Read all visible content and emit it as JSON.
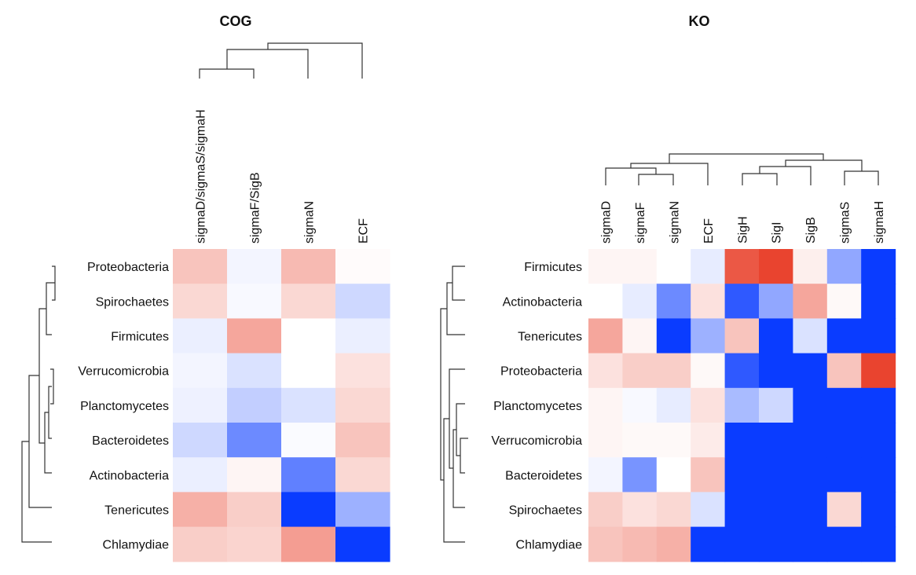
{
  "chart_data": [
    {
      "type": "heatmap",
      "title": "COG",
      "columns": [
        "sigmaD/sigmaS/sigmaH",
        "sigmaF/SigB",
        "sigmaN",
        "ECF"
      ],
      "rows": [
        "Proteobacteria",
        "Spirochaetes",
        "Firmicutes",
        "Verrucomicrobia",
        "Planctomycetes",
        "Bacteroidetes",
        "Actinobacteria",
        "Tenericutes",
        "Chlamydiae"
      ],
      "values": [
        [
          0.3,
          -0.05,
          0.35,
          0.02
        ],
        [
          0.2,
          -0.03,
          0.2,
          -0.2
        ],
        [
          -0.08,
          0.45,
          0.0,
          -0.08
        ],
        [
          -0.05,
          -0.15,
          0.0,
          0.15
        ],
        [
          -0.07,
          -0.25,
          -0.15,
          0.2
        ],
        [
          -0.2,
          -0.6,
          -0.02,
          0.3
        ],
        [
          -0.08,
          0.05,
          -0.65,
          0.2
        ],
        [
          0.4,
          0.25,
          -1.0,
          -0.4
        ],
        [
          0.25,
          0.22,
          0.5,
          -1.0
        ]
      ],
      "color_scale": {
        "low": "#0a3cff",
        "mid": "#ffffff",
        "high": "#e83a24",
        "range": [
          -1,
          1
        ]
      }
    },
    {
      "type": "heatmap",
      "title": "KO",
      "columns": [
        "sigmaD",
        "sigmaF",
        "sigmaN",
        "ECF",
        "SigH",
        "SigI",
        "SigB",
        "sigmaS",
        "sigmaH"
      ],
      "rows": [
        "Firmicutes",
        "Actinobacteria",
        "Tenericutes",
        "Proteobacteria",
        "Planctomycetes",
        "Verrucomicrobia",
        "Bacteroidetes",
        "Spirochaetes",
        "Chlamydiae"
      ],
      "values": [
        [
          0.05,
          0.05,
          0.0,
          -0.1,
          0.85,
          0.95,
          0.08,
          -0.45,
          -1.0
        ],
        [
          0.0,
          -0.1,
          -0.6,
          0.15,
          -0.85,
          -0.45,
          0.45,
          0.03,
          -1.0
        ],
        [
          0.45,
          0.05,
          -1.0,
          -0.4,
          0.3,
          -1.0,
          -0.15,
          -1.0,
          -1.0
        ],
        [
          0.15,
          0.25,
          0.25,
          0.03,
          -0.85,
          -1.0,
          -1.0,
          0.3,
          0.95
        ],
        [
          0.05,
          -0.03,
          -0.1,
          0.15,
          -0.35,
          -0.2,
          -1.0,
          -1.0,
          -1.0
        ],
        [
          0.05,
          0.03,
          0.03,
          0.1,
          -1.0,
          -1.0,
          -1.0,
          -1.0,
          -1.0
        ],
        [
          -0.05,
          -0.55,
          0.0,
          0.3,
          -1.0,
          -1.0,
          -1.0,
          -1.0,
          -1.0
        ],
        [
          0.25,
          0.15,
          0.2,
          -0.15,
          -1.0,
          -1.0,
          -1.0,
          0.2,
          -1.0
        ],
        [
          0.3,
          0.35,
          0.4,
          -1.0,
          -1.0,
          -1.0,
          -1.0,
          -1.0,
          -1.0
        ]
      ],
      "color_scale": {
        "low": "#0a3cff",
        "mid": "#ffffff",
        "high": "#e83a24",
        "range": [
          -1,
          1
        ]
      }
    }
  ]
}
